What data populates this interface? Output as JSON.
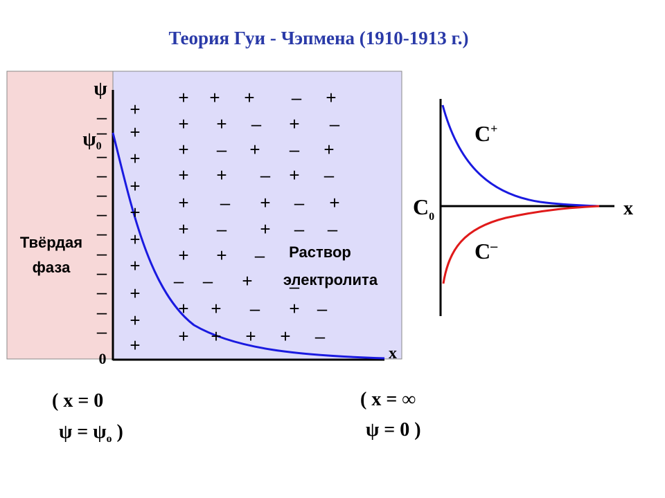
{
  "title": "Теория Гуи - Чэпмена  (1910-1913 г.)",
  "left_panel": {
    "psi_axis": "ψ",
    "psi0": {
      "symbol": "ψ",
      "subscript": "0"
    },
    "origin": "0",
    "x_axis": "x",
    "solid_phase": [
      "Твёрдая",
      "фаза"
    ],
    "solution": [
      "Раствор",
      "электролита"
    ],
    "wall_charges": [
      "–",
      "–",
      "–",
      "–",
      "–",
      "–",
      "–",
      "–",
      "–",
      "–",
      "–",
      "–"
    ],
    "surface_charges": [
      "+",
      "+",
      "+",
      "+",
      "+",
      "+",
      "+",
      "+",
      "+",
      "+"
    ],
    "ions": [
      [
        "+",
        "+",
        "+",
        "–",
        "+"
      ],
      [
        "+",
        "+",
        "–",
        "+",
        "–"
      ],
      [
        "+",
        "–",
        "+",
        "–",
        "+"
      ],
      [
        "+",
        "+",
        "–",
        "+",
        "–"
      ],
      [
        "+",
        "–",
        "+",
        "–",
        "+"
      ],
      [
        "+",
        "–",
        "+",
        "–",
        "–"
      ],
      [
        "+",
        "+",
        "–"
      ],
      [
        "–",
        "–",
        "+",
        "–"
      ],
      [
        "+",
        "+",
        "–",
        "+",
        "–"
      ],
      [
        "+",
        "+",
        "+",
        "+",
        "–"
      ]
    ]
  },
  "conditions": {
    "left": {
      "line1": "( x = 0",
      "line2": {
        "text": "ψ = ψ",
        "subscript": "o",
        "end": " )"
      }
    },
    "right": {
      "line1": "( x = ∞",
      "line2": "ψ = 0 )"
    }
  },
  "right_panel": {
    "c_plus": {
      "symbol": "C",
      "superscript": "+"
    },
    "c_minus": {
      "symbol": "C",
      "superscript": "–"
    },
    "c0": {
      "symbol": "C",
      "subscript": "0"
    },
    "x_axis": "x"
  }
}
